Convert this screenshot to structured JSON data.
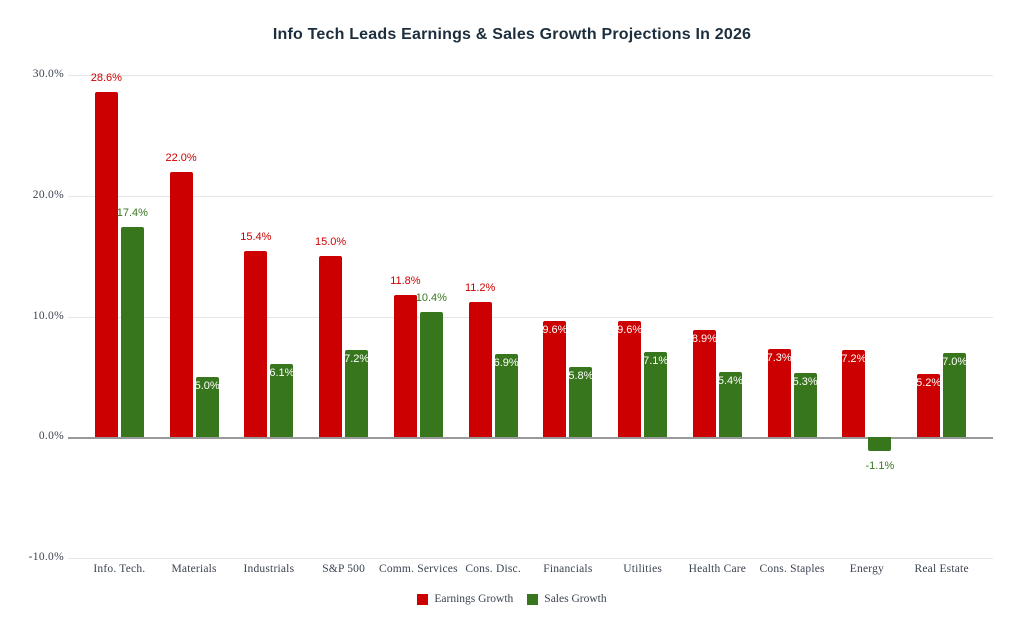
{
  "chart_data": {
    "type": "bar",
    "title": "Info Tech Leads Earnings & Sales Growth Projections In 2026",
    "xlabel": "",
    "ylabel": "",
    "categories": [
      "Info. Tech.",
      "Materials",
      "Industrials",
      "S&P 500",
      "Comm. Services",
      "Cons. Disc.",
      "Financials",
      "Utilities",
      "Health Care",
      "Cons. Staples",
      "Energy",
      "Real Estate"
    ],
    "series": [
      {
        "name": "Earnings Growth",
        "color": "#cc0000",
        "values": [
          28.6,
          22.0,
          15.4,
          15.0,
          11.8,
          11.2,
          9.6,
          9.6,
          8.9,
          7.3,
          7.2,
          5.2
        ],
        "data_labels": [
          "28.6%",
          "22.0%",
          "15.4%",
          "15.0%",
          "11.8%",
          "11.2%",
          "9.6%",
          "9.6%",
          "8.9%",
          "7.3%",
          "7.2%",
          "5.2%"
        ],
        "label_positions": [
          "above",
          "above",
          "above",
          "above",
          "above",
          "above",
          "inside",
          "inside",
          "inside",
          "inside",
          "inside",
          "inside"
        ]
      },
      {
        "name": "Sales Growth",
        "color": "#38761d",
        "values": [
          17.4,
          5.0,
          6.1,
          7.2,
          10.4,
          6.9,
          5.8,
          7.1,
          5.4,
          5.3,
          -1.1,
          7.0
        ],
        "data_labels": [
          "17.4%",
          "5.0%",
          "6.1%",
          "7.2%",
          "10.4%",
          "6.9%",
          "5.8%",
          "7.1%",
          "5.4%",
          "5.3%",
          "-1.1%",
          "7.0%"
        ],
        "label_positions": [
          "above",
          "inside",
          "inside",
          "inside",
          "above",
          "inside",
          "inside",
          "inside",
          "inside",
          "inside",
          "below",
          "inside"
        ]
      }
    ],
    "y_axis": {
      "min": -10,
      "max": 30,
      "ticks": [
        30,
        20,
        10,
        0,
        -10
      ],
      "tick_labels": [
        "30.0%",
        "20.0%",
        "10.0%",
        "0.0%",
        "-10.0%"
      ]
    },
    "legend": {
      "position": "bottom",
      "entries": [
        "Earnings Growth",
        "Sales Growth"
      ]
    },
    "grid": true,
    "style": {
      "grid_color": "#e6e6e6",
      "zero_line_color": "#999999",
      "axis_text_color": "#3b4350",
      "title_color": "#1c2e3d",
      "inside_label_color": "#ffffff",
      "background": "#ffffff"
    }
  }
}
